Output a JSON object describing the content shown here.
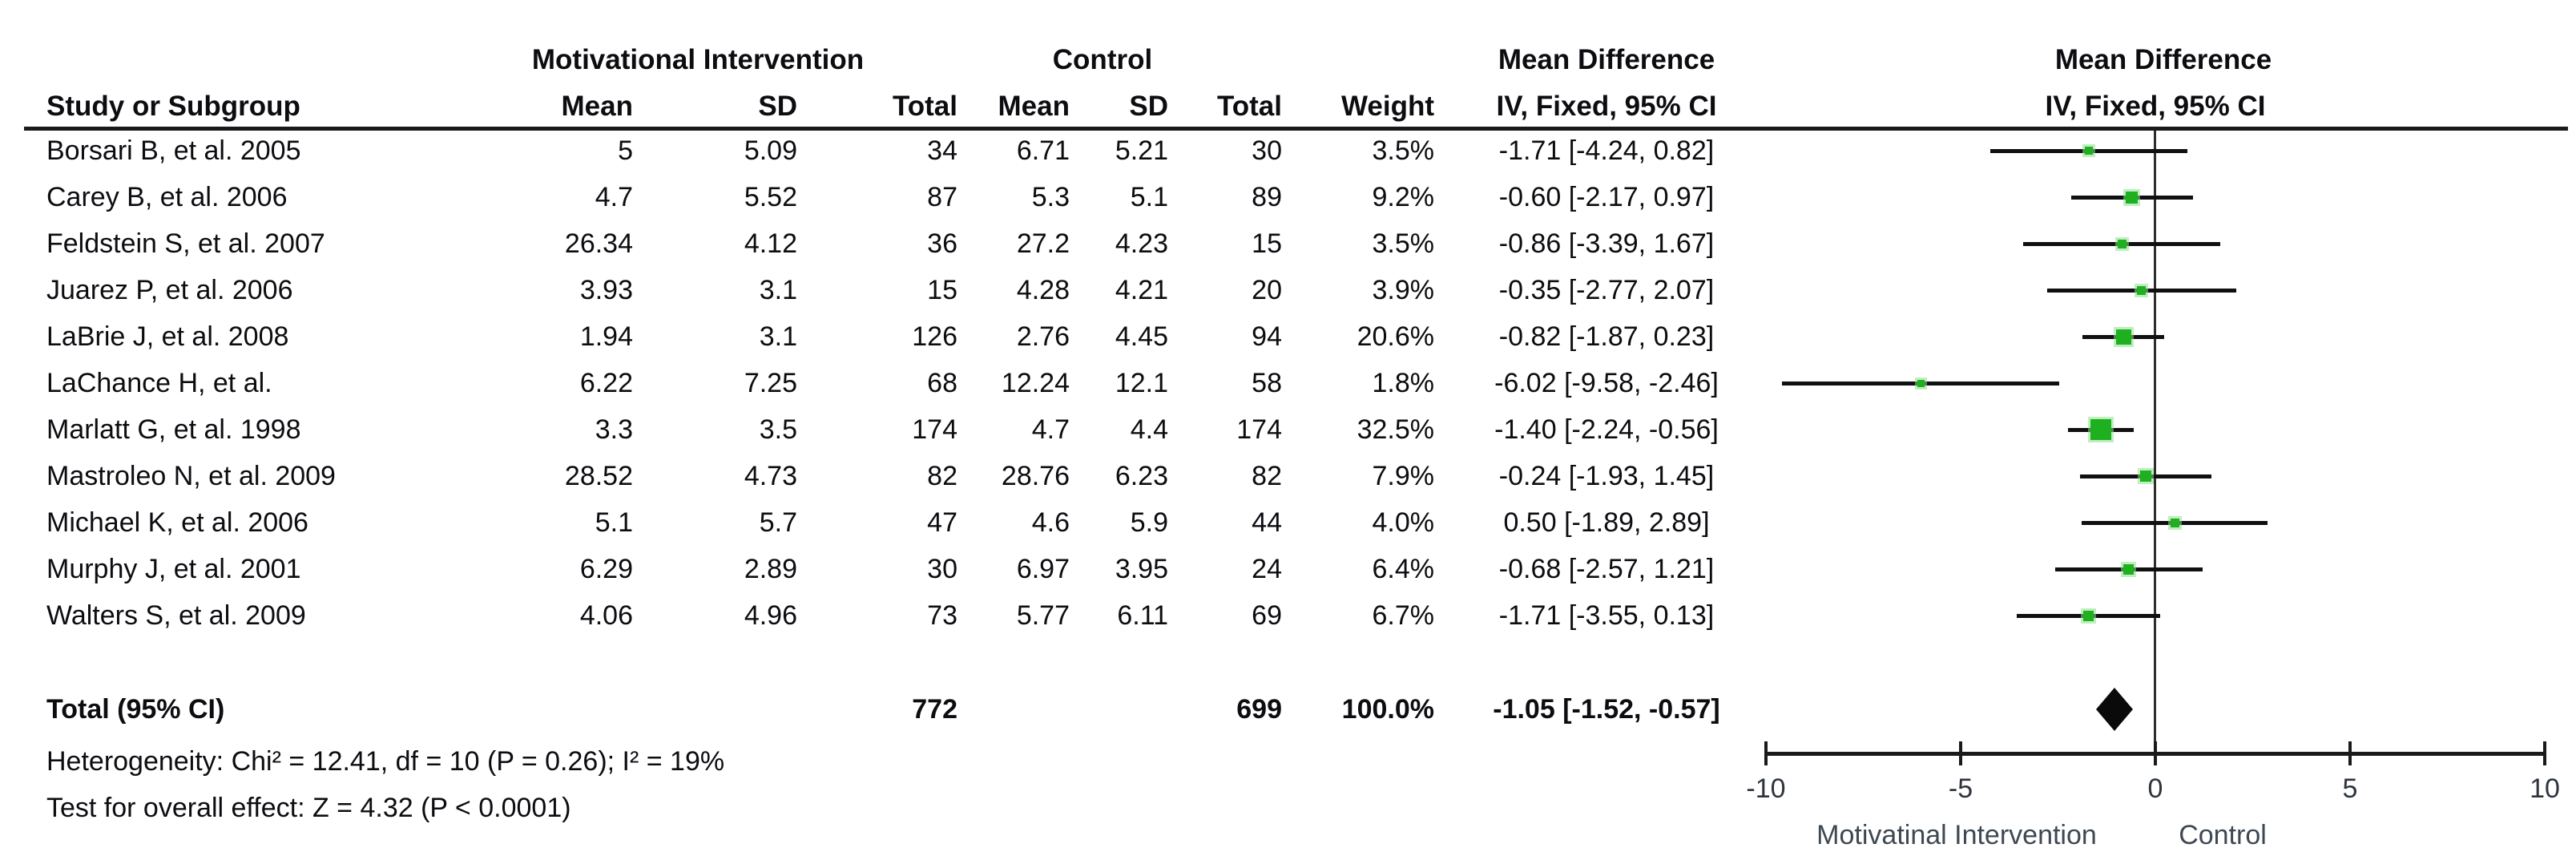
{
  "figure": {
    "group_headers": {
      "intervention": "Motivational Intervention",
      "control": "Control",
      "md_table": "Mean Difference",
      "md_plot": "Mean Difference"
    },
    "column_headers": {
      "study": "Study or Subgroup",
      "mean": "Mean",
      "sd": "SD",
      "total": "Total",
      "weight": "Weight",
      "ci": "IV, Fixed, 95% CI"
    }
  },
  "chart_data": {
    "type": "forest",
    "effect_measure": "Mean Difference — IV, Fixed, 95% CI",
    "title": "",
    "x_axis": {
      "range": [
        -10,
        10
      ],
      "ticks": [
        "-10",
        "-5",
        "0",
        "5",
        "10"
      ],
      "tick_values": [
        -10,
        -5,
        0,
        5,
        10
      ]
    },
    "axis_labels": {
      "left": "Motivatinal Intervention",
      "right": "Control"
    },
    "studies": [
      {
        "name": "Borsari B, et al. 2005",
        "mi_mean": "5",
        "mi_sd": "5.09",
        "mi_total": "34",
        "c_mean": "6.71",
        "c_sd": "5.21",
        "c_total": "30",
        "weight": "3.5%",
        "ci_label": "-1.71 [-4.24, 0.82]",
        "md": -1.71,
        "lo": -4.24,
        "hi": 0.82,
        "size": 10
      },
      {
        "name": "Carey B, et al. 2006",
        "mi_mean": "4.7",
        "mi_sd": "5.52",
        "mi_total": "87",
        "c_mean": "5.3",
        "c_sd": "5.1",
        "c_total": "89",
        "weight": "9.2%",
        "ci_label": "-0.60 [-2.17, 0.97]",
        "md": -0.6,
        "lo": -2.17,
        "hi": 0.97,
        "size": 15
      },
      {
        "name": "Feldstein S, et al. 2007",
        "mi_mean": "26.34",
        "mi_sd": "4.12",
        "mi_total": "36",
        "c_mean": "27.2",
        "c_sd": "4.23",
        "c_total": "15",
        "weight": "3.5%",
        "ci_label": "-0.86 [-3.39, 1.67]",
        "md": -0.86,
        "lo": -3.39,
        "hi": 1.67,
        "size": 11
      },
      {
        "name": "Juarez P, et al. 2006",
        "mi_mean": "3.93",
        "mi_sd": "3.1",
        "mi_total": "15",
        "c_mean": "4.28",
        "c_sd": "4.21",
        "c_total": "20",
        "weight": "3.9%",
        "ci_label": "-0.35 [-2.77, 2.07]",
        "md": -0.35,
        "lo": -2.77,
        "hi": 2.07,
        "size": 11
      },
      {
        "name": "LaBrie J, et al. 2008",
        "mi_mean": "1.94",
        "mi_sd": "3.1",
        "mi_total": "126",
        "c_mean": "2.76",
        "c_sd": "4.45",
        "c_total": "94",
        "weight": "20.6%",
        "ci_label": "-0.82 [-1.87, 0.23]",
        "md": -0.82,
        "lo": -1.87,
        "hi": 0.23,
        "size": 19
      },
      {
        "name": "LaChance H, et al.",
        "mi_mean": "6.22",
        "mi_sd": "7.25",
        "mi_total": "68",
        "c_mean": "12.24",
        "c_sd": "12.1",
        "c_total": "58",
        "weight": "1.8%",
        "ci_label": "-6.02 [-9.58, -2.46]",
        "md": -6.02,
        "lo": -9.58,
        "hi": -2.46,
        "size": 9
      },
      {
        "name": "Marlatt G, et al. 1998",
        "mi_mean": "3.3",
        "mi_sd": "3.5",
        "mi_total": "174",
        "c_mean": "4.7",
        "c_sd": "4.4",
        "c_total": "174",
        "weight": "32.5%",
        "ci_label": "-1.40 [-2.24, -0.56]",
        "md": -1.4,
        "lo": -2.24,
        "hi": -0.56,
        "size": 26
      },
      {
        "name": "Mastroleo N, et al. 2009",
        "mi_mean": "28.52",
        "mi_sd": "4.73",
        "mi_total": "82",
        "c_mean": "28.76",
        "c_sd": "6.23",
        "c_total": "82",
        "weight": "7.9%",
        "ci_label": "-0.24 [-1.93, 1.45]",
        "md": -0.24,
        "lo": -1.93,
        "hi": 1.45,
        "size": 14
      },
      {
        "name": "Michael K, et al. 2006",
        "mi_mean": "5.1",
        "mi_sd": "5.7",
        "mi_total": "47",
        "c_mean": "4.6",
        "c_sd": "5.9",
        "c_total": "44",
        "weight": "4.0%",
        "ci_label": "0.50 [-1.89, 2.89]",
        "md": 0.5,
        "lo": -1.89,
        "hi": 2.89,
        "size": 11
      },
      {
        "name": "Murphy J, et al. 2001",
        "mi_mean": "6.29",
        "mi_sd": "2.89",
        "mi_total": "30",
        "c_mean": "6.97",
        "c_sd": "3.95",
        "c_total": "24",
        "weight": "6.4%",
        "ci_label": "-0.68 [-2.57, 1.21]",
        "md": -0.68,
        "lo": -2.57,
        "hi": 1.21,
        "size": 13
      },
      {
        "name": "Walters S, et al. 2009",
        "mi_mean": "4.06",
        "mi_sd": "4.96",
        "mi_total": "73",
        "c_mean": "5.77",
        "c_sd": "6.11",
        "c_total": "69",
        "weight": "6.7%",
        "ci_label": "-1.71 [-3.55, 0.13]",
        "md": -1.71,
        "lo": -3.55,
        "hi": 0.13,
        "size": 13
      }
    ],
    "total": {
      "label": "Total (95% CI)",
      "mi_total": "772",
      "c_total": "699",
      "weight": "100.0%",
      "ci_label": "-1.05 [-1.52, -0.57]",
      "md": -1.05,
      "lo": -1.52,
      "hi": -0.57
    },
    "heterogeneity": "Heterogeneity: Chi² = 12.41, df = 10 (P = 0.26); I² = 19%",
    "overall_effect": "Test for overall effect: Z = 4.32 (P < 0.0001)",
    "legend_position": "none",
    "grid": false
  },
  "colors": {
    "marker_green": "#1fb01f",
    "marker_halo": "#8ae08a",
    "diamond_black": "#0a0a0a",
    "line_black": "#1a1a1a",
    "text_black": "#0d0d11",
    "axis_label_gray": "#3e4852"
  }
}
